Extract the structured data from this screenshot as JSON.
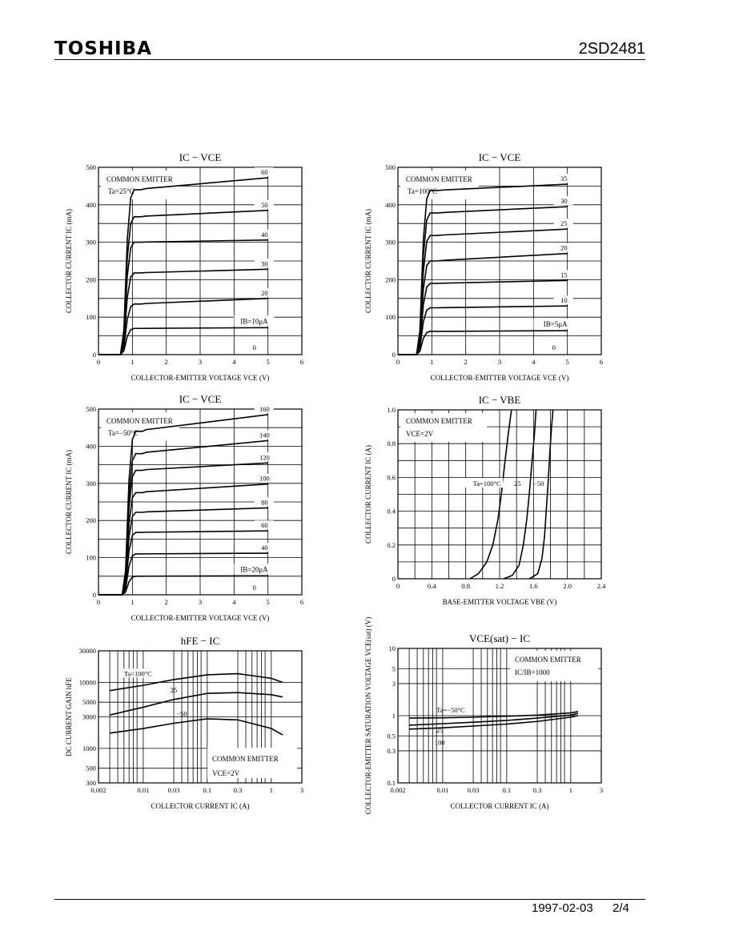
{
  "header": {
    "logo": "TOSHIBA",
    "part_number": "2SD2481"
  },
  "footer": {
    "date": "1997-02-03",
    "page": "2/4"
  },
  "chart_data": [
    {
      "type": "line",
      "title": "IC − VCE",
      "xlabel": "COLLECTOR-EMITTER VOLTAGE VCE (V)",
      "ylabel": "COLLECTOR CURRENT IC (mA)",
      "xlim": [
        0,
        6
      ],
      "ylim": [
        0,
        500
      ],
      "xticks": [
        "0",
        "1",
        "2",
        "3",
        "4",
        "5",
        "6"
      ],
      "yticks": [
        "0",
        "100",
        "200",
        "300",
        "400",
        "500"
      ],
      "annotations": [
        "COMMON EMITTER",
        "Ta=25°C",
        "IB=10μA",
        "0"
      ],
      "curve_labels": [
        "60",
        "50",
        "40",
        "30",
        "20"
      ],
      "series": [
        {
          "name": "IB=10μA",
          "ib": 10,
          "sat": 70,
          "end": 72
        },
        {
          "name": "20",
          "ib": 20,
          "sat": 135,
          "end": 150
        },
        {
          "name": "30",
          "ib": 30,
          "sat": 218,
          "end": 228
        },
        {
          "name": "40",
          "ib": 40,
          "sat": 300,
          "end": 306
        },
        {
          "name": "50",
          "ib": 50,
          "sat": 368,
          "end": 385
        },
        {
          "name": "60",
          "ib": 60,
          "sat": 440,
          "end": 472
        }
      ]
    },
    {
      "type": "line",
      "title": "IC − VCE",
      "xlabel": "COLLECTOR-EMITTER VOLTAGE VCE (V)",
      "ylabel": "COLLECTOR CURRENT IC (mA)",
      "xlim": [
        0,
        6
      ],
      "ylim": [
        0,
        500
      ],
      "xticks": [
        "0",
        "1",
        "2",
        "3",
        "4",
        "5",
        "6"
      ],
      "yticks": [
        "0",
        "100",
        "200",
        "300",
        "400",
        "500"
      ],
      "annotations": [
        "COMMON EMITTER",
        "Ta=100°C",
        "IB=5μA",
        "0"
      ],
      "curve_labels": [
        "35",
        "30",
        "25",
        "20",
        "15",
        "10"
      ],
      "series": [
        {
          "name": "IB=5μA",
          "ib": 5,
          "sat": 62,
          "end": 64
        },
        {
          "name": "10",
          "ib": 10,
          "sat": 125,
          "end": 130
        },
        {
          "name": "15",
          "ib": 15,
          "sat": 190,
          "end": 198
        },
        {
          "name": "20",
          "ib": 20,
          "sat": 250,
          "end": 270
        },
        {
          "name": "25",
          "ib": 25,
          "sat": 318,
          "end": 335
        },
        {
          "name": "30",
          "ib": 30,
          "sat": 378,
          "end": 395
        },
        {
          "name": "35",
          "ib": 35,
          "sat": 438,
          "end": 455
        }
      ]
    },
    {
      "type": "line",
      "title": "IC − VCE",
      "xlabel": "COLLECTOR-EMITTER VOLTAGE VCE (V)",
      "ylabel": "COLLECTOR CURRENT IC (mA)",
      "xlim": [
        0,
        6
      ],
      "ylim": [
        0,
        500
      ],
      "xticks": [
        "0",
        "1",
        "2",
        "3",
        "4",
        "5",
        "6"
      ],
      "yticks": [
        "0",
        "100",
        "200",
        "300",
        "400",
        "500"
      ],
      "annotations": [
        "COMMON EMITTER",
        "Ta=−50°C",
        "IB=20μA",
        "0"
      ],
      "curve_labels": [
        "160",
        "140",
        "120",
        "100",
        "80",
        "60",
        "40"
      ],
      "series": [
        {
          "name": "IB=20μA",
          "ib": 20,
          "sat": 50,
          "end": 51
        },
        {
          "name": "40",
          "ib": 40,
          "sat": 110,
          "end": 112
        },
        {
          "name": "60",
          "ib": 60,
          "sat": 168,
          "end": 172
        },
        {
          "name": "80",
          "ib": 80,
          "sat": 222,
          "end": 234
        },
        {
          "name": "100",
          "ib": 100,
          "sat": 275,
          "end": 298
        },
        {
          "name": "120",
          "ib": 120,
          "sat": 335,
          "end": 355
        },
        {
          "name": "140",
          "ib": 140,
          "sat": 380,
          "end": 415
        },
        {
          "name": "160",
          "ib": 160,
          "sat": 440,
          "end": 485
        }
      ]
    },
    {
      "type": "line",
      "title": "IC − VBE",
      "xlabel": "BASE-EMITTER VOLTAGE VBE (V)",
      "ylabel": "COLLECTOR CURRENT IC (A)",
      "xlim": [
        0,
        2.4
      ],
      "ylim": [
        0,
        1.0
      ],
      "xticks": [
        "0",
        "0.4",
        "0.8",
        "1.2",
        "1.6",
        "2.0",
        "2.4"
      ],
      "yticks": [
        "0",
        "0.2",
        "0.4",
        "0.6",
        "0.8",
        "1.0"
      ],
      "annotations": [
        "COMMON EMITTER",
        "VCE=2V",
        "Ta=100°C",
        "25",
        "−50"
      ],
      "series": [
        {
          "name": "Ta=100°C",
          "x": [
            0.85,
            0.95,
            1.05,
            1.12,
            1.18,
            1.22,
            1.26,
            1.3,
            1.34
          ],
          "y": [
            0,
            0.03,
            0.1,
            0.2,
            0.35,
            0.5,
            0.68,
            0.85,
            1.0
          ]
        },
        {
          "name": "25",
          "x": [
            1.25,
            1.35,
            1.43,
            1.48,
            1.52,
            1.55,
            1.58,
            1.61,
            1.63
          ],
          "y": [
            0,
            0.02,
            0.08,
            0.2,
            0.35,
            0.5,
            0.68,
            0.85,
            1.0
          ]
        },
        {
          "name": "−50",
          "x": [
            1.55,
            1.65,
            1.7,
            1.73,
            1.75,
            1.77,
            1.79,
            1.81,
            1.83
          ],
          "y": [
            0,
            0.03,
            0.12,
            0.25,
            0.4,
            0.55,
            0.72,
            0.88,
            1.0
          ]
        }
      ]
    },
    {
      "type": "line",
      "title": "hFE − IC",
      "xlabel": "COLLECTOR CURRENT IC (A)",
      "ylabel": "DC CURRENT GAIN hFE",
      "xscale": "log",
      "yscale": "log",
      "xlim": [
        0.002,
        3
      ],
      "ylim": [
        300,
        30000
      ],
      "xticks": [
        "0.002",
        "0.01",
        "0.03",
        "0.1",
        "0.3",
        "1",
        "3"
      ],
      "yticks": [
        "300",
        "500",
        "1000",
        "3000",
        "5000",
        "10000",
        "30000"
      ],
      "annotations": [
        "COMMON EMITTER",
        "VCE=2V",
        "Ta=100°C",
        "25",
        "−50"
      ],
      "series": [
        {
          "name": "Ta=100°C",
          "x": [
            0.003,
            0.01,
            0.03,
            0.1,
            0.3,
            1,
            1.5
          ],
          "y": [
            7500,
            9000,
            11000,
            13000,
            13500,
            11500,
            10000
          ]
        },
        {
          "name": "25",
          "x": [
            0.003,
            0.01,
            0.03,
            0.1,
            0.3,
            1,
            1.5
          ],
          "y": [
            3200,
            4200,
            5500,
            6800,
            7000,
            6500,
            6000
          ]
        },
        {
          "name": "−50",
          "x": [
            0.003,
            0.01,
            0.03,
            0.1,
            0.3,
            1,
            1.5
          ],
          "y": [
            1700,
            2000,
            2400,
            2800,
            2700,
            2000,
            1600
          ]
        }
      ]
    },
    {
      "type": "line",
      "title": "VCE(sat) − IC",
      "xlabel": "COLLECTOR CURRENT IC (A)",
      "ylabel": "COLLECTOR-EMITTER SATURATION VOLTAGE VCE(sat) (V)",
      "xscale": "log",
      "yscale": "log",
      "xlim": [
        0.002,
        3
      ],
      "ylim": [
        0.1,
        10
      ],
      "xticks": [
        "0.002",
        "0.01",
        "0.03",
        "0.1",
        "0.3",
        "1",
        "3"
      ],
      "yticks": [
        "0.1",
        "0.3",
        "0.5",
        "1",
        "3",
        "5",
        "10"
      ],
      "annotations": [
        "COMMON EMITTER",
        "IC/IB=1000",
        "Ta=−50°C",
        "25",
        "100"
      ],
      "series": [
        {
          "name": "Ta=−50°C",
          "x": [
            0.003,
            0.01,
            0.03,
            0.1,
            0.3,
            1,
            1.3
          ],
          "y": [
            0.92,
            0.93,
            0.95,
            0.98,
            1.02,
            1.1,
            1.15
          ]
        },
        {
          "name": "25",
          "x": [
            0.003,
            0.01,
            0.03,
            0.1,
            0.3,
            1,
            1.3
          ],
          "y": [
            0.72,
            0.76,
            0.8,
            0.85,
            0.92,
            1.02,
            1.08
          ]
        },
        {
          "name": "100",
          "x": [
            0.003,
            0.01,
            0.03,
            0.1,
            0.3,
            1,
            1.3
          ],
          "y": [
            0.63,
            0.66,
            0.7,
            0.75,
            0.82,
            0.95,
            1.0
          ]
        }
      ]
    }
  ]
}
